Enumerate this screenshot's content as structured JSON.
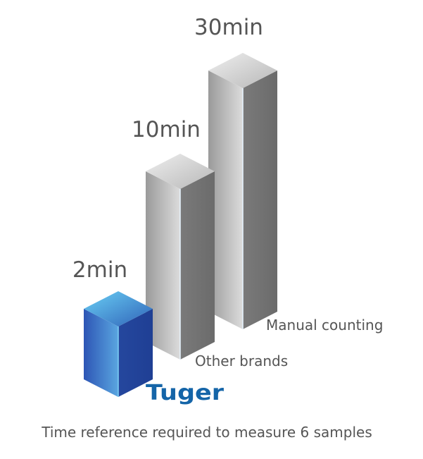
{
  "chart_data": {
    "type": "bar",
    "style": "3d-isometric",
    "categories": [
      "Tuger",
      "Other brands",
      "Manual counting"
    ],
    "values": [
      2,
      10,
      30
    ],
    "unit": "min",
    "data_labels": [
      "2min",
      "10min",
      "30min"
    ],
    "caption": "Time reference required to measure 6 samples",
    "colors": {
      "Tuger": "#2a4fa8",
      "Other brands": "#b5b5b5",
      "Manual counting": "#b5b5b5"
    },
    "brand_color": "#1565a8"
  }
}
